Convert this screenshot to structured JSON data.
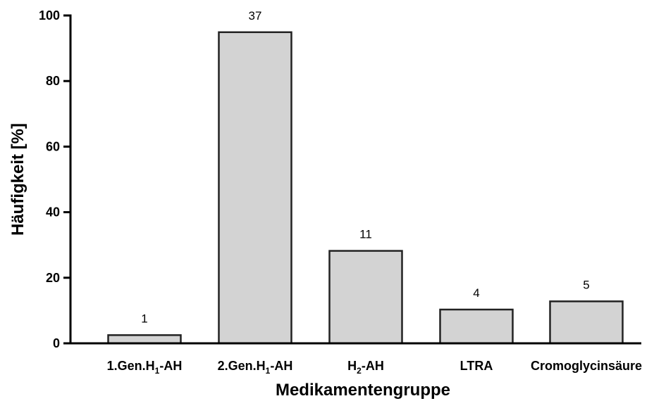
{
  "chart_data": {
    "type": "bar",
    "title": "",
    "xlabel": "Medikamentengruppe",
    "ylabel": "Häufigkeit [%]",
    "ylim": [
      0,
      100
    ],
    "yticks": [
      0,
      20,
      40,
      60,
      80,
      100
    ],
    "categories": [
      {
        "main": "1.Gen.H",
        "sub": "1",
        "suffix": "-AH"
      },
      {
        "main": "2.Gen.H",
        "sub": "1",
        "suffix": "-AH"
      },
      {
        "main": "H",
        "sub": "2",
        "suffix": "-AH"
      },
      {
        "main": "LTRA",
        "sub": "",
        "suffix": ""
      },
      {
        "main": "Cromoglycinsäure",
        "sub": "",
        "suffix": ""
      }
    ],
    "values": [
      2.5,
      94.9,
      28.2,
      10.3,
      12.8
    ],
    "data_labels": [
      "1",
      "37",
      "11",
      "4",
      "5"
    ],
    "bar_color": "#d3d3d3",
    "bar_edge_color": "#222222",
    "grid": false,
    "legend": "none"
  }
}
